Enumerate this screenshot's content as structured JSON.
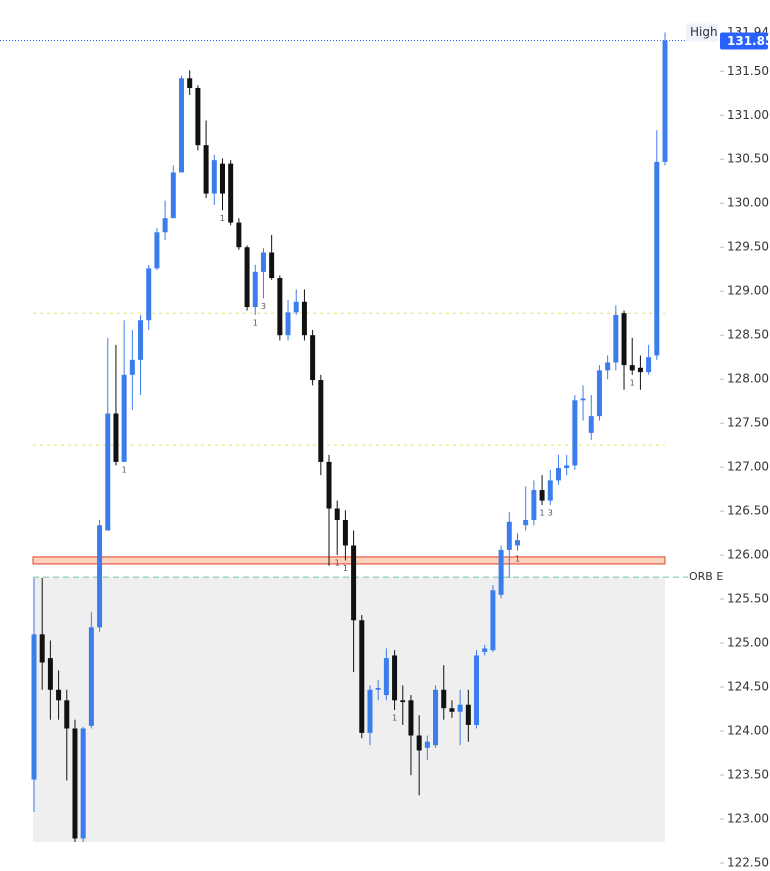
{
  "chart_data": {
    "type": "candlestick",
    "up_color": "#3b7ded",
    "down_color": "#111111",
    "ylim": [
      122.41,
      132.31
    ],
    "yticks": [
      {
        "value": 122.5,
        "label": "122.50"
      },
      {
        "value": 123,
        "label": "123.00"
      },
      {
        "value": 123.5,
        "label": "123.50"
      },
      {
        "value": 124,
        "label": "124.00"
      },
      {
        "value": 124.5,
        "label": "124.50"
      },
      {
        "value": 125,
        "label": "125.00"
      },
      {
        "value": 125.5,
        "label": "125.50"
      },
      {
        "value": 126,
        "label": "126.00"
      },
      {
        "value": 126.5,
        "label": "126.50"
      },
      {
        "value": 127,
        "label": "127.00"
      },
      {
        "value": 127.5,
        "label": "127.50"
      },
      {
        "value": 128,
        "label": "128.00"
      },
      {
        "value": 128.5,
        "label": "128.50"
      },
      {
        "value": 129,
        "label": "129.00"
      },
      {
        "value": 129.5,
        "label": "129.50"
      },
      {
        "value": 130,
        "label": "130.00"
      },
      {
        "value": 130.5,
        "label": "130.50"
      },
      {
        "value": 131,
        "label": "131.00"
      },
      {
        "value": 131.5,
        "label": "131.50"
      }
    ],
    "open": [
      123.45,
      125.1,
      124.83,
      124.47,
      124.35,
      124.03,
      122.78,
      124.06,
      125.18,
      126.28,
      127.61,
      127.06,
      128.05,
      128.22,
      128.67,
      129.26,
      129.67,
      129.83,
      130.35,
      131.42,
      131.31,
      130.66,
      130.11,
      130.45,
      130.45,
      129.78,
      129.5,
      128.82,
      129.22,
      129.44,
      129.15,
      128.5,
      128.76,
      128.88,
      128.5,
      127.99,
      127.06,
      126.53,
      126.4,
      126.11,
      125.26,
      123.98,
      124.47,
      124.41,
      124.86,
      124.35,
      124.35,
      123.95,
      123.81,
      123.84,
      124.47,
      124.26,
      124.22,
      124.3,
      124.07,
      124.9,
      124.92,
      125.55,
      126.06,
      126.11,
      126.34,
      126.4,
      126.74,
      126.62,
      126.85,
      126.99,
      127.02,
      127.76,
      127.39,
      127.58,
      128.1,
      128.19,
      128.75,
      128.16,
      128.13,
      128.08,
      128.27,
      130.47
    ],
    "high": [
      125.74,
      125.74,
      125.03,
      124.69,
      124.47,
      124.13,
      124.05,
      125.35,
      126.4,
      128.47,
      128.39,
      128.67,
      128.56,
      128.73,
      129.3,
      129.72,
      130.03,
      130.43,
      131.45,
      131.51,
      131.34,
      130.94,
      130.55,
      130.51,
      130.49,
      129.83,
      129.52,
      129.3,
      129.49,
      129.64,
      129.18,
      128.9,
      129.02,
      129.02,
      128.56,
      128.05,
      127.14,
      126.62,
      126.51,
      126.28,
      125.32,
      124.52,
      124.58,
      124.94,
      124.92,
      124.52,
      124.41,
      124.18,
      123.95,
      124.52,
      124.75,
      124.35,
      124.47,
      124.47,
      124.92,
      124.98,
      125.66,
      126.11,
      126.49,
      126.25,
      126.78,
      126.85,
      126.91,
      126.97,
      127.14,
      127.14,
      127.82,
      127.93,
      127.82,
      128.16,
      128.27,
      128.84,
      128.78,
      128.47,
      128.27,
      128.39,
      130.83,
      131.94
    ],
    "low": [
      123.08,
      124.47,
      124.13,
      124.13,
      123.44,
      122.74,
      122.74,
      124.03,
      125.13,
      126.28,
      127.02,
      127.06,
      127.65,
      127.82,
      128.56,
      129.24,
      129.58,
      129.83,
      130.35,
      131.23,
      130.6,
      130.06,
      129.98,
      129.92,
      129.75,
      129.47,
      128.78,
      128.73,
      128.92,
      129.13,
      128.44,
      128.44,
      128.73,
      128.44,
      127.93,
      126.91,
      125.88,
      126.0,
      125.94,
      124.67,
      123.92,
      123.84,
      124.35,
      124.35,
      124.24,
      124.07,
      123.5,
      123.27,
      123.67,
      123.81,
      124.13,
      124.15,
      123.84,
      123.88,
      124.03,
      124.86,
      124.9,
      125.51,
      125.74,
      126.05,
      126.28,
      126.34,
      126.57,
      126.57,
      126.8,
      126.91,
      126.97,
      127.53,
      127.31,
      127.53,
      128.0,
      128.1,
      127.88,
      128.05,
      127.88,
      128.05,
      128.22,
      130.43
    ],
    "close": [
      125.1,
      124.78,
      124.47,
      124.35,
      124.03,
      122.78,
      124.03,
      125.18,
      126.34,
      127.61,
      127.06,
      128.05,
      128.22,
      128.67,
      129.26,
      129.67,
      129.83,
      130.35,
      131.42,
      131.31,
      130.66,
      130.11,
      130.49,
      130.11,
      129.78,
      129.5,
      128.82,
      129.22,
      129.44,
      129.15,
      128.5,
      128.76,
      128.88,
      128.5,
      127.99,
      127.06,
      126.53,
      126.4,
      126.11,
      125.26,
      123.98,
      124.47,
      124.49,
      124.83,
      124.35,
      124.33,
      123.95,
      123.78,
      123.88,
      124.47,
      124.26,
      124.22,
      124.3,
      124.07,
      124.86,
      124.94,
      125.6,
      126.06,
      126.38,
      126.17,
      126.4,
      126.74,
      126.62,
      126.85,
      126.99,
      127.02,
      127.76,
      127.78,
      127.58,
      128.1,
      128.19,
      128.73,
      128.16,
      128.1,
      128.08,
      128.25,
      130.47,
      131.85
    ],
    "annotations": [
      {
        "text": "1",
        "candle": 11
      },
      {
        "text": "1",
        "candle": 23
      },
      {
        "text": "1",
        "candle": 27
      },
      {
        "text": "3",
        "candle": 28
      },
      {
        "text": "1",
        "candle": 37
      },
      {
        "text": "1",
        "candle": 38
      },
      {
        "text": "1",
        "candle": 44
      },
      {
        "text": "1",
        "candle": 59
      },
      {
        "text": "1",
        "candle": 62
      },
      {
        "text": "3",
        "candle": 63
      },
      {
        "text": "1",
        "candle": 73
      }
    ],
    "levels": [
      {
        "value": 128.75,
        "color": "#e8e070"
      },
      {
        "value": 127.25,
        "color": "#e8e070"
      }
    ],
    "zone": {
      "top": 125.98,
      "bottom": 125.9,
      "color": "#e0402a"
    },
    "orb": {
      "label": "ORB E",
      "value": 125.75,
      "color": "#6cc79a"
    },
    "high_tag": {
      "label": "High",
      "value": 131.94
    },
    "last_price": 131.85,
    "last_color": "#2962ff"
  }
}
